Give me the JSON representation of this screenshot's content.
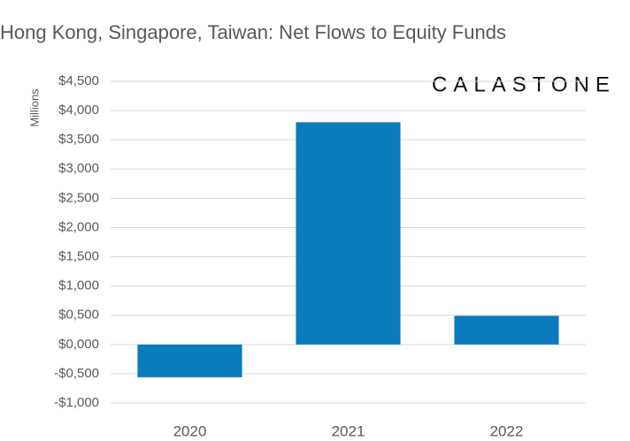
{
  "chart_data": {
    "type": "bar",
    "title": "Hong Kong, Singapore, Taiwan: Net Flows to Equity Funds",
    "logo": "CALASTONE",
    "y_label": "Millions",
    "categories": [
      "2020",
      "2021",
      "2022"
    ],
    "values": [
      -560,
      3800,
      490
    ],
    "color": "#0a7bbd",
    "ylim": [
      -1000,
      4500
    ],
    "yticks": [
      {
        "value": -1000,
        "label": "-$1,000"
      },
      {
        "value": -500,
        "label": "-$0,500"
      },
      {
        "value": 0,
        "label": "$0,000"
      },
      {
        "value": 500,
        "label": "$0,500"
      },
      {
        "value": 1000,
        "label": "$1,000"
      },
      {
        "value": 1500,
        "label": "$1,500"
      },
      {
        "value": 2000,
        "label": "$2,000"
      },
      {
        "value": 2500,
        "label": "$2,500"
      },
      {
        "value": 3000,
        "label": "$3,000"
      },
      {
        "value": 3500,
        "label": "$3,500"
      },
      {
        "value": 4000,
        "label": "$4,000"
      },
      {
        "value": 4500,
        "label": "$4,500"
      }
    ],
    "grid": true
  }
}
